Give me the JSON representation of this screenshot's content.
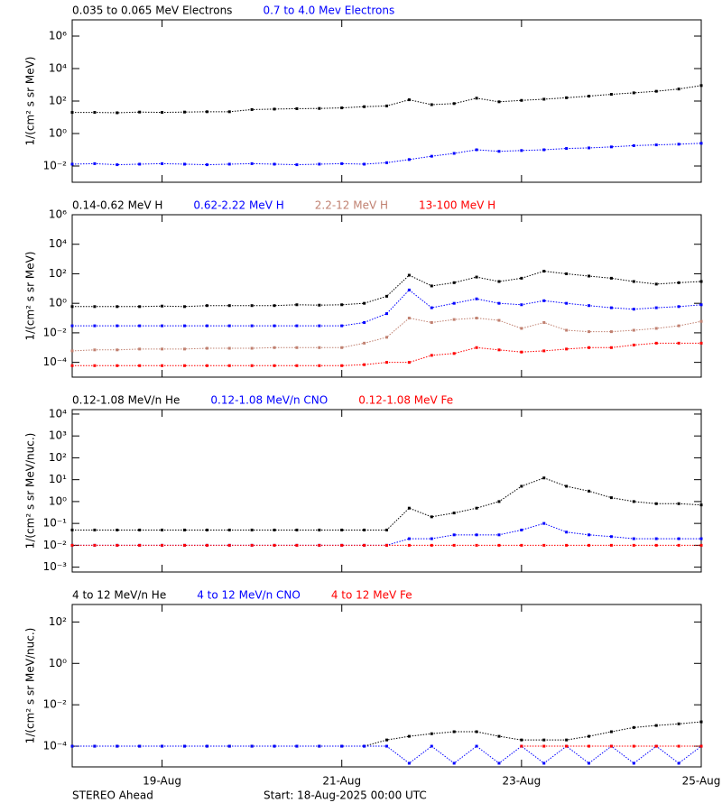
{
  "chart_data": [
    {
      "type": "scatter",
      "ylabel": "1/(cm² s sr MeV)",
      "log_y": true,
      "xlim": [
        0,
        7
      ],
      "ylim": [
        0.001,
        10000000
      ],
      "yticks": [
        {
          "value": 0.01,
          "label": "10⁻²"
        },
        {
          "value": 1,
          "label": "10⁰"
        },
        {
          "value": 100,
          "label": "10²"
        },
        {
          "value": 10000,
          "label": "10⁴"
        },
        {
          "value": 1000000,
          "label": "10⁶"
        }
      ],
      "x": [
        0,
        0.25,
        0.5,
        0.75,
        1,
        1.25,
        1.5,
        1.75,
        2,
        2.25,
        2.5,
        2.75,
        3,
        3.25,
        3.5,
        3.75,
        4,
        4.25,
        4.5,
        4.75,
        5,
        5.25,
        5.5,
        5.75,
        6,
        6.25,
        6.5,
        6.75,
        7
      ],
      "series": [
        {
          "name": "0.035 to 0.065 MeV Electrons",
          "color": "#000000",
          "values": [
            20,
            20,
            19,
            21,
            20,
            21,
            22,
            22,
            30,
            32,
            34,
            35,
            38,
            45,
            50,
            120,
            60,
            70,
            150,
            90,
            110,
            130,
            160,
            200,
            260,
            320,
            400,
            550,
            900
          ]
        },
        {
          "name": "0.7 to 4.0 Mev Electrons",
          "color": "#0000ff",
          "values": [
            0.013,
            0.014,
            0.012,
            0.013,
            0.014,
            0.013,
            0.012,
            0.013,
            0.014,
            0.013,
            0.012,
            0.013,
            0.014,
            0.013,
            0.016,
            0.025,
            0.04,
            0.06,
            0.1,
            0.08,
            0.09,
            0.1,
            0.12,
            0.13,
            0.15,
            0.18,
            0.2,
            0.22,
            0.25
          ]
        }
      ]
    },
    {
      "type": "scatter",
      "ylabel": "1/(cm² s sr MeV)",
      "log_y": true,
      "xlim": [
        0,
        7
      ],
      "ylim": [
        1e-05,
        1000000
      ],
      "yticks": [
        {
          "value": 0.0001,
          "label": "10⁻⁴"
        },
        {
          "value": 0.01,
          "label": "10⁻²"
        },
        {
          "value": 1,
          "label": "10⁰"
        },
        {
          "value": 100,
          "label": "10²"
        },
        {
          "value": 10000,
          "label": "10⁴"
        },
        {
          "value": 1000000,
          "label": "10⁶"
        }
      ],
      "x": [
        0,
        0.25,
        0.5,
        0.75,
        1,
        1.25,
        1.5,
        1.75,
        2,
        2.25,
        2.5,
        2.75,
        3,
        3.25,
        3.5,
        3.75,
        4,
        4.25,
        4.5,
        4.75,
        5,
        5.25,
        5.5,
        5.75,
        6,
        6.25,
        6.5,
        6.75,
        7
      ],
      "series": [
        {
          "name": "0.14-0.62 MeV H",
          "color": "#000000",
          "values": [
            0.6,
            0.6,
            0.6,
            0.6,
            0.65,
            0.6,
            0.7,
            0.7,
            0.7,
            0.7,
            0.8,
            0.75,
            0.8,
            1,
            3,
            80,
            15,
            25,
            60,
            30,
            50,
            150,
            100,
            70,
            50,
            30,
            20,
            25,
            30
          ]
        },
        {
          "name": "0.62-2.22 MeV H",
          "color": "#0000ff",
          "values": [
            0.03,
            0.03,
            0.03,
            0.03,
            0.03,
            0.03,
            0.03,
            0.03,
            0.03,
            0.03,
            0.03,
            0.03,
            0.03,
            0.05,
            0.2,
            8,
            0.5,
            1,
            2,
            1,
            0.8,
            1.5,
            1,
            0.7,
            0.5,
            0.4,
            0.5,
            0.6,
            0.8
          ]
        },
        {
          "name": "2.2-12 MeV H",
          "color": "#c08070",
          "values": [
            0.0006,
            0.0007,
            0.0007,
            0.0008,
            0.0008,
            0.0008,
            0.0009,
            0.0009,
            0.0009,
            0.001,
            0.001,
            0.001,
            0.001,
            0.002,
            0.005,
            0.1,
            0.05,
            0.08,
            0.1,
            0.07,
            0.02,
            0.05,
            0.015,
            0.012,
            0.012,
            0.015,
            0.02,
            0.03,
            0.06
          ]
        },
        {
          "name": "13-100 MeV H",
          "color": "#ff0000",
          "values": [
            6e-05,
            6e-05,
            6e-05,
            6e-05,
            6e-05,
            6e-05,
            6e-05,
            6e-05,
            6e-05,
            6e-05,
            6e-05,
            6e-05,
            6e-05,
            7e-05,
            0.0001,
            0.0001,
            0.0003,
            0.0004,
            0.001,
            0.0007,
            0.0005,
            0.0006,
            0.0008,
            0.001,
            0.001,
            0.0015,
            0.002,
            0.002,
            0.002
          ]
        }
      ]
    },
    {
      "type": "scatter",
      "ylabel": "1/(cm² s sr MeV/nuc.)",
      "log_y": true,
      "xlim": [
        0,
        7
      ],
      "ylim": [
        0.0006,
        16000
      ],
      "yticks": [
        {
          "value": 0.001,
          "label": "10⁻³"
        },
        {
          "value": 0.01,
          "label": "10⁻²"
        },
        {
          "value": 0.1,
          "label": "10⁻¹"
        },
        {
          "value": 1,
          "label": "10⁰"
        },
        {
          "value": 10,
          "label": "10¹"
        },
        {
          "value": 100,
          "label": "10²"
        },
        {
          "value": 1000,
          "label": "10³"
        },
        {
          "value": 10000,
          "label": "10⁴"
        }
      ],
      "x": [
        0,
        0.25,
        0.5,
        0.75,
        1,
        1.25,
        1.5,
        1.75,
        2,
        2.25,
        2.5,
        2.75,
        3,
        3.25,
        3.5,
        3.75,
        4,
        4.25,
        4.5,
        4.75,
        5,
        5.25,
        5.5,
        5.75,
        6,
        6.25,
        6.5,
        6.75,
        7
      ],
      "series": [
        {
          "name": "0.12-1.08 MeV/n He",
          "color": "#000000",
          "values": [
            0.05,
            0.05,
            0.05,
            0.05,
            0.05,
            0.05,
            0.05,
            0.05,
            0.05,
            0.05,
            0.05,
            0.05,
            0.05,
            0.05,
            0.05,
            0.5,
            0.2,
            0.3,
            0.5,
            1,
            5,
            12,
            5,
            3,
            1.5,
            1,
            0.8,
            0.8,
            0.7
          ]
        },
        {
          "name": "0.12-1.08 MeV/n CNO",
          "color": "#0000ff",
          "values": [
            0.01,
            0.01,
            0.01,
            0.01,
            0.01,
            0.01,
            0.01,
            0.01,
            0.01,
            0.01,
            0.01,
            0.01,
            0.01,
            0.01,
            0.01,
            0.02,
            0.02,
            0.03,
            0.03,
            0.03,
            0.05,
            0.1,
            0.04,
            0.03,
            0.025,
            0.02,
            0.02,
            0.02,
            0.02
          ]
        },
        {
          "name": "0.12-1.08 MeV Fe",
          "color": "#ff0000",
          "values": [
            0.01,
            0.01,
            0.01,
            0.01,
            0.01,
            0.01,
            0.01,
            0.01,
            0.01,
            0.01,
            0.01,
            0.01,
            0.01,
            0.01,
            0.01,
            0.01,
            0.01,
            0.01,
            0.01,
            0.01,
            0.01,
            0.01,
            0.01,
            0.01,
            0.01,
            0.01,
            0.01,
            0.01,
            0.01
          ]
        }
      ]
    },
    {
      "type": "scatter",
      "ylabel": "1/(cm² s sr MeV/nuc.)",
      "log_y": true,
      "xlim": [
        0,
        7
      ],
      "ylim": [
        1e-05,
        700
      ],
      "yticks": [
        {
          "value": 0.0001,
          "label": "10⁻⁴"
        },
        {
          "value": 0.01,
          "label": "10⁻²"
        },
        {
          "value": 1,
          "label": "10⁰"
        },
        {
          "value": 100,
          "label": "10²"
        }
      ],
      "xticks": [
        {
          "value": 1,
          "label": "19-Aug"
        },
        {
          "value": 3,
          "label": "21-Aug"
        },
        {
          "value": 5,
          "label": "23-Aug"
        },
        {
          "value": 7,
          "label": "25-Aug"
        }
      ],
      "x": [
        0,
        0.25,
        0.5,
        0.75,
        1,
        1.25,
        1.5,
        1.75,
        2,
        2.25,
        2.5,
        2.75,
        3,
        3.25,
        3.5,
        3.75,
        4,
        4.25,
        4.5,
        4.75,
        5,
        5.25,
        5.5,
        5.75,
        6,
        6.25,
        6.5,
        6.75,
        7
      ],
      "series": [
        {
          "name": "4 to 12 MeV/n He",
          "color": "#000000",
          "values": [
            0.0001,
            0.0001,
            0.0001,
            0.0001,
            0.0001,
            0.0001,
            0.0001,
            0.0001,
            0.0001,
            0.0001,
            0.0001,
            0.0001,
            0.0001,
            0.0001,
            0.0002,
            0.0003,
            0.0004,
            0.0005,
            0.0005,
            0.0003,
            0.0002,
            0.0002,
            0.0002,
            0.0003,
            0.0005,
            0.0008,
            0.001,
            0.0012,
            0.0015
          ]
        },
        {
          "name": "4 to 12 MeV/n CNO",
          "color": "#0000ff",
          "values": [
            0.0001,
            0.0001,
            0.0001,
            0.0001,
            0.0001,
            0.0001,
            0.0001,
            0.0001,
            0.0001,
            0.0001,
            0.0001,
            0.0001,
            0.0001,
            0.0001,
            0.0001,
            1.5e-05,
            0.0001,
            1.5e-05,
            0.0001,
            1.5e-05,
            0.0001,
            1.5e-05,
            0.0001,
            1.5e-05,
            0.0001,
            1.5e-05,
            0.0001,
            1.5e-05,
            0.0001
          ]
        },
        {
          "name": "4 to 12 MeV Fe",
          "color": "#ff0000",
          "values": [
            null,
            null,
            null,
            null,
            null,
            null,
            null,
            null,
            null,
            null,
            null,
            null,
            null,
            null,
            null,
            null,
            null,
            null,
            null,
            null,
            0.0001,
            0.0001,
            0.0001,
            0.0001,
            0.0001,
            0.0001,
            0.0001,
            0.0001,
            0.0001
          ]
        }
      ]
    }
  ],
  "footer": {
    "left": "STEREO Ahead",
    "start": "Start: 18-Aug-2025 00:00 UTC"
  }
}
